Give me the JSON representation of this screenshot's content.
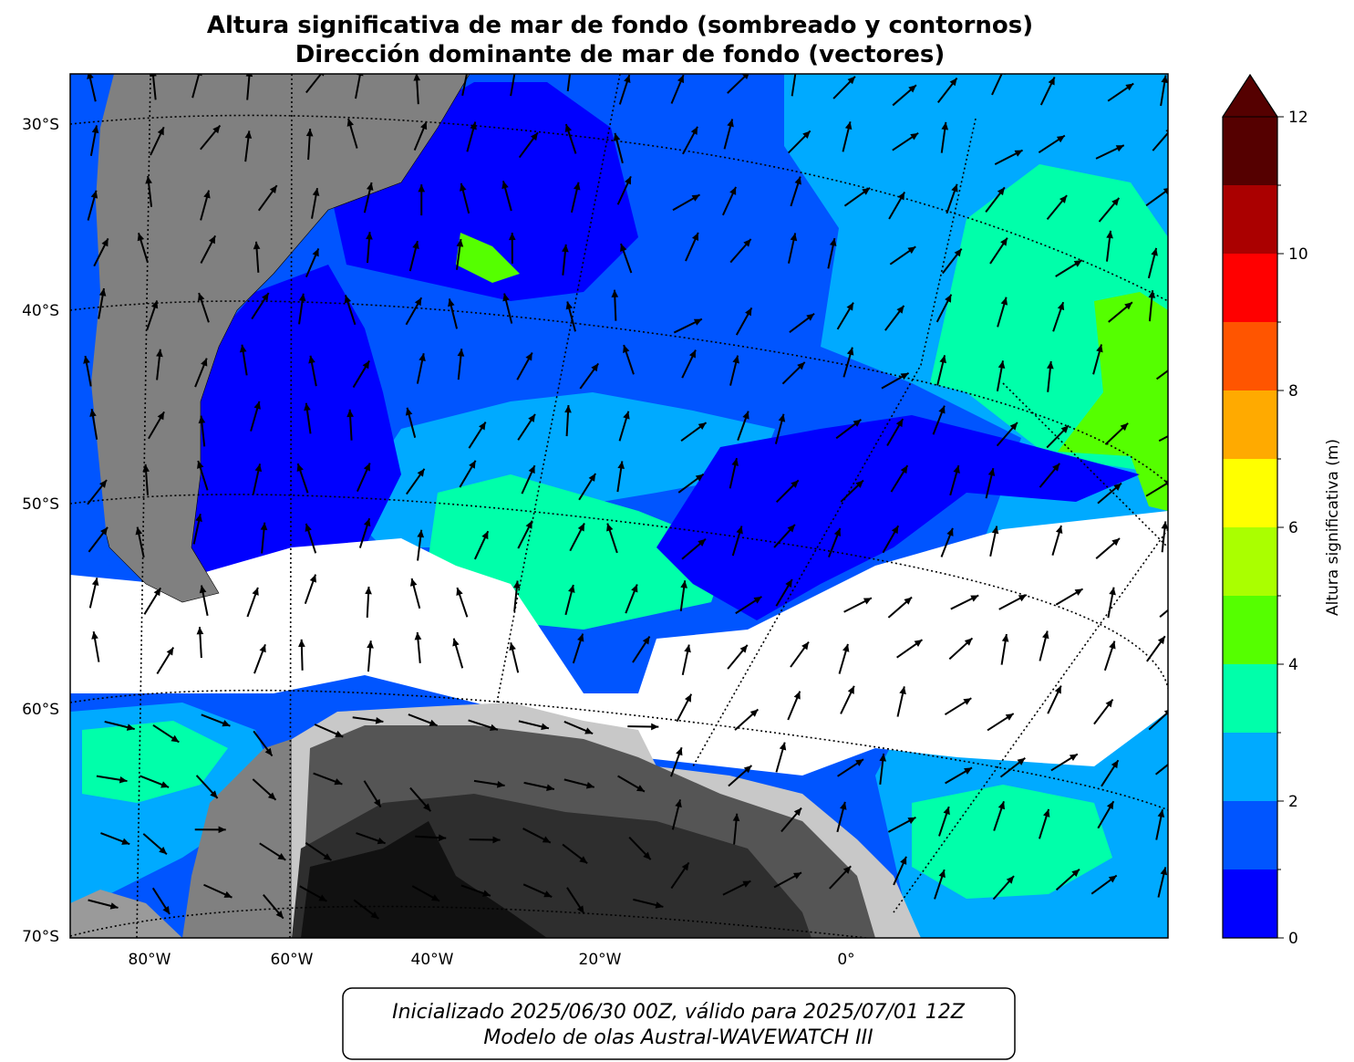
{
  "title": [
    "Altura significativa de mar de fondo (sombreado y contornos)",
    "Dirección dominante de mar de fondo (vectores)"
  ],
  "map": {
    "lat_labels": [
      "30°S",
      "40°S",
      "50°S",
      "60°S",
      "70°S"
    ],
    "lon_labels": [
      "80°W",
      "60°W",
      "40°W",
      "20°W",
      "0°"
    ]
  },
  "colorbar": {
    "label": "Altura significativa (m)",
    "levels": [
      0,
      1,
      2,
      3,
      4,
      5,
      6,
      7,
      8,
      9,
      10,
      11,
      12
    ],
    "colors": [
      "#0000ff",
      "#0055ff",
      "#00aaff",
      "#00ffaa",
      "#55ff00",
      "#aaff00",
      "#ffff00",
      "#ffaa00",
      "#ff5500",
      "#ff0000",
      "#aa0000",
      "#550000"
    ],
    "extend_color": "#550000",
    "ticks": [
      0,
      2,
      4,
      6,
      8,
      10,
      12
    ]
  },
  "footer": [
    "Inicializado 2025/06/30 00Z, válido para 2025/07/01 12Z",
    "Modelo de olas Austral-WAVEWATCH III"
  ]
}
